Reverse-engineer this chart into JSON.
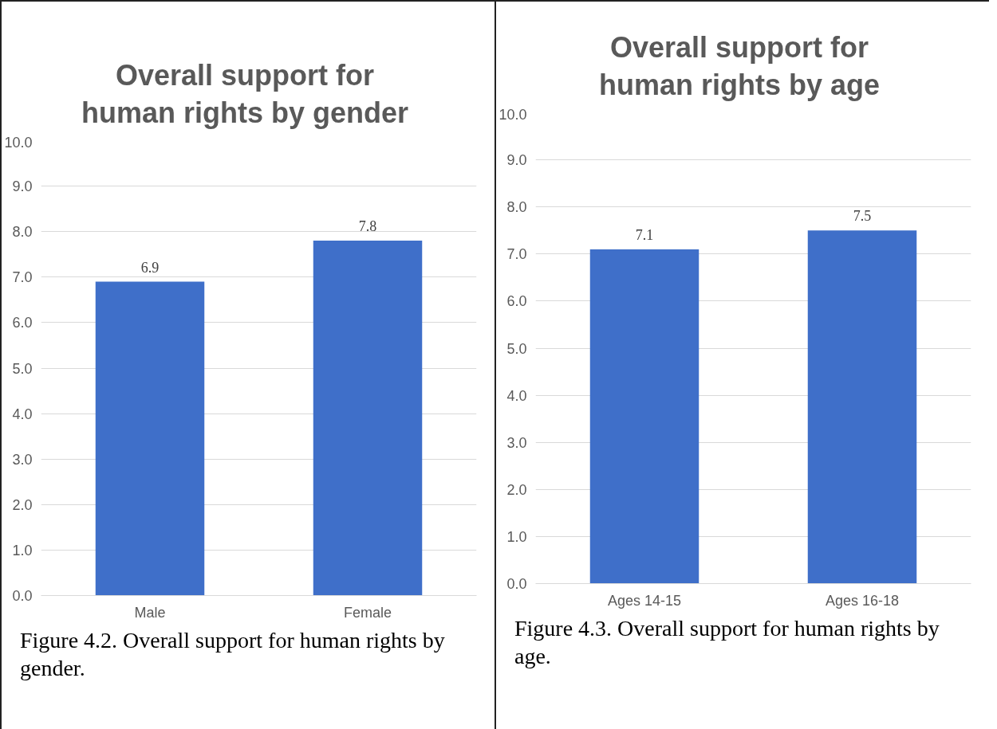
{
  "chart_data": [
    {
      "type": "bar",
      "title": "Overall support for human rights by gender",
      "categories": [
        "Male",
        "Female"
      ],
      "values": [
        6.9,
        7.8
      ],
      "color": "#3f6fc9",
      "data_labels": true,
      "grid": "y",
      "ylim": [
        0,
        10
      ],
      "yticks": [
        {
          "value": 0,
          "label": "0.0"
        },
        {
          "value": 1,
          "label": "1.0"
        },
        {
          "value": 2,
          "label": "2.0"
        },
        {
          "value": 3,
          "label": "3.0"
        },
        {
          "value": 4,
          "label": "4.0"
        },
        {
          "value": 5,
          "label": "5.0"
        },
        {
          "value": 6,
          "label": "6.0"
        },
        {
          "value": 7,
          "label": "7.0"
        },
        {
          "value": 8,
          "label": "8.0"
        },
        {
          "value": 9,
          "label": "9.0"
        },
        {
          "value": 10,
          "label": "10.0"
        }
      ],
      "annotations": [
        "Figure 4.2. Overall support for human rights by gender."
      ]
    },
    {
      "type": "bar",
      "title": "Overall support for human rights by age",
      "categories": [
        "Ages 14-15",
        "Ages 16-18"
      ],
      "values": [
        7.1,
        7.5
      ],
      "color": "#3f6fc9",
      "data_labels": true,
      "grid": "y",
      "ylim": [
        0,
        10
      ],
      "yticks": [
        {
          "value": 0,
          "label": "0.0"
        },
        {
          "value": 1,
          "label": "1.0"
        },
        {
          "value": 2,
          "label": "2.0"
        },
        {
          "value": 3,
          "label": "3.0"
        },
        {
          "value": 4,
          "label": "4.0"
        },
        {
          "value": 5,
          "label": "5.0"
        },
        {
          "value": 6,
          "label": "6.0"
        },
        {
          "value": 7,
          "label": "7.0"
        },
        {
          "value": 8,
          "label": "8.0"
        },
        {
          "value": 9,
          "label": "9.0"
        },
        {
          "value": 10,
          "label": "10.0"
        }
      ],
      "annotations": [
        "Figure 4.3. Overall support for human rights by age."
      ]
    }
  ]
}
